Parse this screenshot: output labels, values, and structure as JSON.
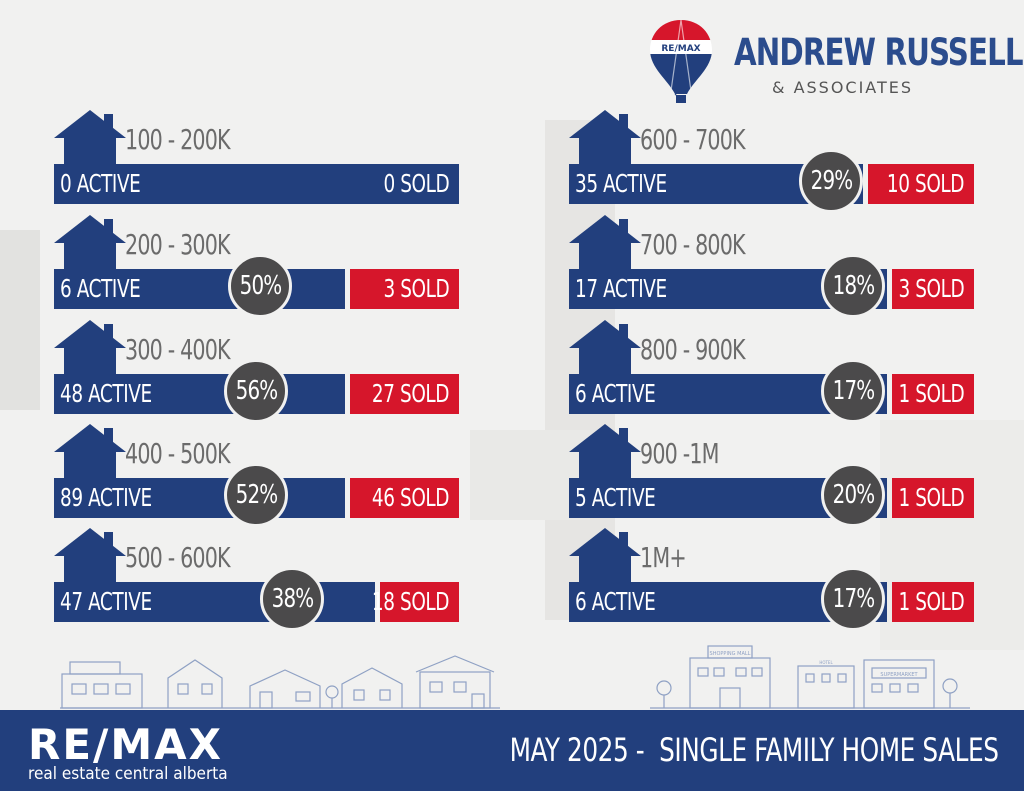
{
  "brand": {
    "balloon_text": "RE/MAX",
    "team_name": "ANDREW RUSSELL",
    "team_sub": "& ASSOCIATES",
    "colors": {
      "blue": "#223f7d",
      "red": "#d6162b",
      "circle": "#4b4a4b"
    }
  },
  "tiers": [
    {
      "range": "100 - 200K",
      "active": "0 ACTIVE",
      "sold": "0 SOLD",
      "rate": null
    },
    {
      "range": "200 - 300K",
      "active": "6 ACTIVE",
      "sold": "3 SOLD",
      "rate": "50%"
    },
    {
      "range": "300 - 400K",
      "active": "48 ACTIVE",
      "sold": "27 SOLD",
      "rate": "56%"
    },
    {
      "range": "400 - 500K",
      "active": "89 ACTIVE",
      "sold": "46 SOLD",
      "rate": "52%"
    },
    {
      "range": "500 - 600K",
      "active": "47 ACTIVE",
      "sold": "18 SOLD",
      "rate": "38%"
    },
    {
      "range": "600 - 700K",
      "active": "35 ACTIVE",
      "sold": "10 SOLD",
      "rate": "29%"
    },
    {
      "range": "700 - 800K",
      "active": "17 ACTIVE",
      "sold": "3 SOLD",
      "rate": "18%"
    },
    {
      "range": "800 - 900K",
      "active": "6 ACTIVE",
      "sold": "1 SOLD",
      "rate": "17%"
    },
    {
      "range": "900 -1M",
      "active": "5 ACTIVE",
      "sold": "1 SOLD",
      "rate": "20%"
    },
    {
      "range": "1M+",
      "active": "6 ACTIVE",
      "sold": "1 SOLD",
      "rate": "17%"
    }
  ],
  "skyline": {
    "mall_sign": "SHOPPING MALL",
    "market_sign": "SUPERMARKET",
    "hotel_sign": "HOTEL"
  },
  "footer": {
    "logo": "RE/MAX",
    "tagline": "real estate central alberta",
    "title": "MAY 2025 -  SINGLE FAMILY HOME SALES"
  }
}
